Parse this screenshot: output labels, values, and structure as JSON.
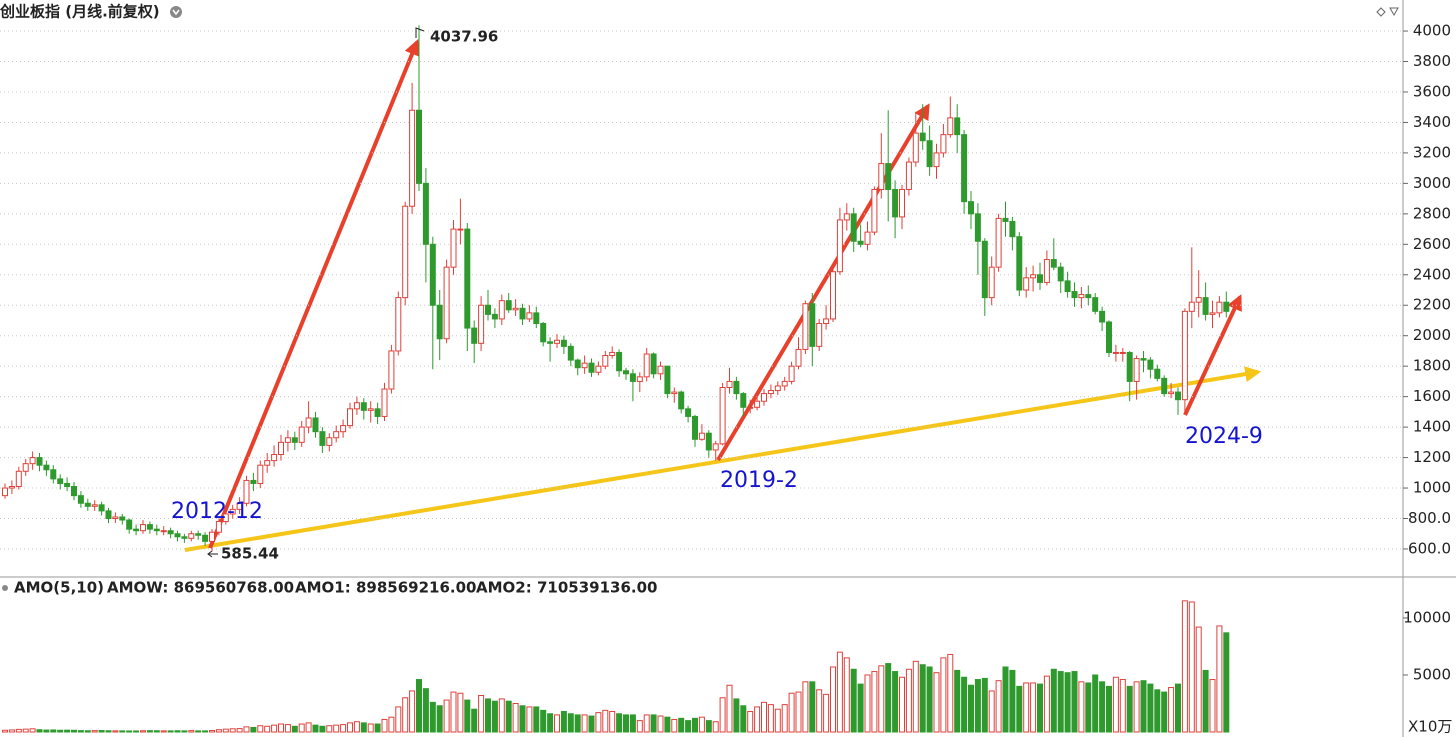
{
  "chart_data": [
    {
      "type": "candlestick",
      "title": "创业板指 (月线.前复权)",
      "open": [
        950,
        1000,
        1010,
        1110,
        1160,
        1200,
        1150,
        1120,
        1060,
        1030,
        1010,
        950,
        900,
        880,
        890,
        850,
        800,
        810,
        790,
        730,
        720,
        760,
        730,
        720,
        720,
        700,
        680,
        670,
        700,
        690,
        650,
        710,
        780,
        830,
        860,
        900,
        1050,
        1030,
        1150,
        1180,
        1220,
        1300,
        1330,
        1300,
        1400,
        1460,
        1370,
        1280,
        1330,
        1370,
        1410,
        1520,
        1560,
        1510,
        1520,
        1470,
        1650,
        1900,
        2250,
        2850,
        3480,
        3000,
        2600,
        2200,
        1980,
        2450,
        2700,
        2700,
        2050,
        1950,
        2200,
        2140,
        2110,
        2230,
        2170,
        2180,
        2110,
        2150,
        2080,
        1960,
        1950,
        1970,
        1930,
        1840,
        1790,
        1820,
        1760,
        1800,
        1870,
        1890,
        1770,
        1750,
        1700,
        1730,
        1880,
        1750,
        1800,
        1620,
        1630,
        1520,
        1470,
        1320,
        1360,
        1250,
        1290,
        1660,
        1700,
        1620,
        1530,
        1530,
        1570,
        1620,
        1640,
        1670,
        1700,
        1800,
        1910,
        2210,
        1930,
        2080,
        2110,
        2420,
        2760,
        2800,
        2620,
        2600,
        2680,
        2960,
        3130,
        2960,
        2780,
        2960,
        3140,
        3330,
        3280,
        3110,
        3200,
        3320,
        3430,
        3320,
        2880,
        2800,
        2620,
        2250,
        2450,
        2770,
        2750,
        2650,
        2300,
        2380,
        2400,
        2350,
        2500,
        2450,
        2360,
        2290,
        2250,
        2270,
        2250,
        2160,
        2090,
        1890,
        1890,
        1890,
        1700,
        1850,
        1840,
        1780,
        1720,
        1620,
        1630,
        1580,
        2160,
        2220,
        2250,
        2140,
        2150,
        2220
      ],
      "high": [
        1030,
        1050,
        1140,
        1190,
        1240,
        1230,
        1180,
        1150,
        1090,
        1070,
        1040,
        980,
        930,
        920,
        910,
        870,
        840,
        830,
        800,
        760,
        790,
        780,
        760,
        750,
        740,
        720,
        700,
        720,
        720,
        710,
        730,
        800,
        860,
        890,
        940,
        1080,
        1100,
        1180,
        1230,
        1280,
        1350,
        1380,
        1370,
        1440,
        1570,
        1500,
        1400,
        1360,
        1410,
        1450,
        1560,
        1600,
        1590,
        1570,
        1560,
        1690,
        1940,
        2290,
        2880,
        3660,
        4037.96,
        3100,
        2650,
        2300,
        2500,
        2760,
        2900,
        2740,
        2100,
        2260,
        2300,
        2180,
        2270,
        2280,
        2240,
        2210,
        2200,
        2190,
        2090,
        1990,
        2010,
        2000,
        1950,
        1850,
        1870,
        1850,
        1830,
        1900,
        1930,
        1910,
        1790,
        1780,
        1760,
        1920,
        1890,
        1830,
        1800,
        1660,
        1640,
        1540,
        1480,
        1420,
        1380,
        1310,
        1690,
        1790,
        1730,
        1630,
        1580,
        1630,
        1650,
        1680,
        1700,
        1730,
        1830,
        1990,
        2230,
        2280,
        2110,
        2200,
        2440,
        2840,
        2870,
        2840,
        2730,
        2750,
        2980,
        3330,
        3480,
        3020,
        2990,
        3170,
        3470,
        3520,
        3380,
        3260,
        3390,
        3570,
        3520,
        3350,
        2950,
        2870,
        2640,
        2520,
        2800,
        2880,
        2780,
        2680,
        2450,
        2460,
        2480,
        2560,
        2640,
        2480,
        2420,
        2350,
        2320,
        2330,
        2280,
        2190,
        2100,
        1940,
        1920,
        1900,
        1870,
        1900,
        1860,
        1810,
        1740,
        1690,
        1660,
        2180,
        2580,
        2430,
        2350,
        2230,
        2260,
        2290
      ],
      "low": [
        930,
        960,
        990,
        1080,
        1120,
        1110,
        1080,
        1030,
        990,
        980,
        920,
        870,
        850,
        850,
        820,
        770,
        770,
        760,
        700,
        690,
        700,
        700,
        690,
        690,
        670,
        650,
        640,
        650,
        660,
        620,
        585.44,
        690,
        760,
        800,
        830,
        880,
        980,
        1000,
        1100,
        1140,
        1180,
        1240,
        1250,
        1270,
        1360,
        1330,
        1230,
        1240,
        1300,
        1330,
        1390,
        1480,
        1450,
        1430,
        1420,
        1440,
        1620,
        1870,
        2200,
        2800,
        2950,
        2350,
        1780,
        1840,
        1950,
        2400,
        2600,
        1900,
        1820,
        1900,
        2100,
        2050,
        2070,
        2150,
        2130,
        2070,
        2090,
        2050,
        1930,
        1830,
        1920,
        1880,
        1800,
        1740,
        1750,
        1730,
        1740,
        1780,
        1850,
        1730,
        1710,
        1570,
        1630,
        1700,
        1720,
        1710,
        1590,
        1560,
        1490,
        1430,
        1270,
        1310,
        1200,
        1180,
        1280,
        1620,
        1580,
        1470,
        1490,
        1510,
        1540,
        1590,
        1610,
        1640,
        1680,
        1780,
        1880,
        1800,
        1900,
        2040,
        2090,
        2400,
        2690,
        2550,
        2580,
        2560,
        2660,
        2900,
        2750,
        2640,
        2700,
        2920,
        3110,
        3220,
        3050,
        3030,
        3170,
        3300,
        3200,
        2800,
        2700,
        2400,
        2130,
        2200,
        2420,
        2650,
        2560,
        2260,
        2250,
        2290,
        2300,
        2330,
        2430,
        2280,
        2250,
        2190,
        2180,
        2200,
        2140,
        2030,
        1860,
        1830,
        1830,
        1570,
        1580,
        1760,
        1720,
        1700,
        1600,
        1590,
        1480,
        1500,
        2050,
        2120,
        2100,
        2050,
        2120,
        2120
      ],
      "close": [
        1000,
        1010,
        1110,
        1160,
        1200,
        1150,
        1120,
        1060,
        1030,
        1010,
        950,
        900,
        880,
        890,
        850,
        800,
        810,
        790,
        730,
        720,
        760,
        730,
        720,
        720,
        700,
        680,
        670,
        700,
        690,
        650,
        710,
        780,
        830,
        860,
        900,
        1050,
        1030,
        1150,
        1180,
        1220,
        1300,
        1330,
        1300,
        1400,
        1460,
        1370,
        1280,
        1330,
        1370,
        1410,
        1520,
        1560,
        1510,
        1520,
        1470,
        1650,
        1900,
        2250,
        2850,
        3480,
        3000,
        2600,
        2200,
        1980,
        2450,
        2700,
        2700,
        2050,
        1950,
        2200,
        2140,
        2110,
        2230,
        2170,
        2180,
        2110,
        2150,
        2080,
        1960,
        1950,
        1970,
        1930,
        1840,
        1790,
        1820,
        1760,
        1800,
        1870,
        1890,
        1770,
        1750,
        1700,
        1730,
        1880,
        1750,
        1800,
        1620,
        1630,
        1520,
        1470,
        1320,
        1360,
        1250,
        1290,
        1660,
        1700,
        1620,
        1530,
        1530,
        1570,
        1620,
        1640,
        1670,
        1700,
        1800,
        1910,
        2210,
        1930,
        2080,
        2110,
        2420,
        2760,
        2800,
        2620,
        2600,
        2680,
        2960,
        3130,
        2960,
        2780,
        2960,
        3140,
        3330,
        3280,
        3110,
        3200,
        3320,
        3430,
        3320,
        2880,
        2800,
        2620,
        2250,
        2450,
        2770,
        2750,
        2650,
        2300,
        2380,
        2400,
        2350,
        2500,
        2450,
        2360,
        2290,
        2250,
        2270,
        2250,
        2160,
        2090,
        1890,
        1890,
        1890,
        1700,
        1850,
        1840,
        1780,
        1720,
        1620,
        1630,
        1580,
        2160,
        2220,
        2250,
        2140,
        2150,
        2220,
        2160
      ],
      "up_color": "#e0403a",
      "down_color": "#2e9a2e",
      "ylim": [
        416,
        4171
      ],
      "yticks": [
        {
          "value": 600,
          "label": "600.0"
        },
        {
          "value": 800,
          "label": "800.0"
        },
        1000,
        1200,
        1400,
        1600,
        1800,
        2000,
        2200,
        2400,
        2600,
        2800,
        3000,
        3200,
        3400,
        3600,
        3800,
        4000
      ],
      "grid": true,
      "annotations": [
        "4037.96",
        "585.44",
        "2012-12",
        "2019-2",
        "2024-9"
      ]
    },
    {
      "type": "bar",
      "title": "AMO(5,10)",
      "stats": [
        "AMOW: 869560768.00",
        "AMO1: 898569216.00",
        "AMO2: 710539136.00"
      ],
      "stat_colors": [
        "#222222",
        "#222222",
        "#1a6fc0"
      ],
      "values": [
        150,
        180,
        230,
        250,
        280,
        200,
        170,
        180,
        150,
        160,
        150,
        120,
        110,
        120,
        130,
        110,
        100,
        100,
        90,
        90,
        110,
        120,
        110,
        100,
        100,
        110,
        100,
        120,
        100,
        100,
        130,
        200,
        250,
        280,
        300,
        450,
        400,
        550,
        500,
        600,
        700,
        650,
        500,
        700,
        800,
        600,
        500,
        550,
        600,
        650,
        800,
        900,
        800,
        700,
        700,
        1100,
        1300,
        2200,
        3000,
        3600,
        4600,
        3800,
        2600,
        2300,
        2800,
        3500,
        3400,
        2800,
        2000,
        3200,
        2900,
        2700,
        2900,
        2700,
        2500,
        2300,
        2200,
        2200,
        1900,
        1600,
        1500,
        1800,
        1600,
        1500,
        1500,
        1400,
        1700,
        1900,
        1800,
        1600,
        1500,
        1500,
        1000,
        1500,
        1500,
        1400,
        1300,
        1100,
        1200,
        1000,
        1200,
        1300,
        1000,
        900,
        3000,
        4100,
        2900,
        2300,
        1800,
        2200,
        2600,
        2400,
        2000,
        2400,
        3400,
        3500,
        4400,
        4400,
        3700,
        3300,
        5700,
        7000,
        6500,
        5500,
        4200,
        5000,
        5300,
        5800,
        6000,
        5300,
        4800,
        5500,
        6200,
        5900,
        5700,
        5200,
        6500,
        6800,
        5400,
        4800,
        4100,
        4600,
        4700,
        3600,
        4500,
        5700,
        5400,
        4000,
        4300,
        4300,
        4200,
        4900,
        5500,
        5300,
        5200,
        5300,
        4400,
        4300,
        5000,
        4400,
        4000,
        4800,
        4600,
        4000,
        4400,
        4500,
        4200,
        3700,
        3500,
        3900,
        4200,
        11500,
        11400,
        9200,
        5400,
        4600,
        9300,
        8696
      ],
      "ylim": [
        0,
        11750
      ],
      "yticks": [
        5000,
        10000
      ],
      "unit": "X10万"
    }
  ]
}
